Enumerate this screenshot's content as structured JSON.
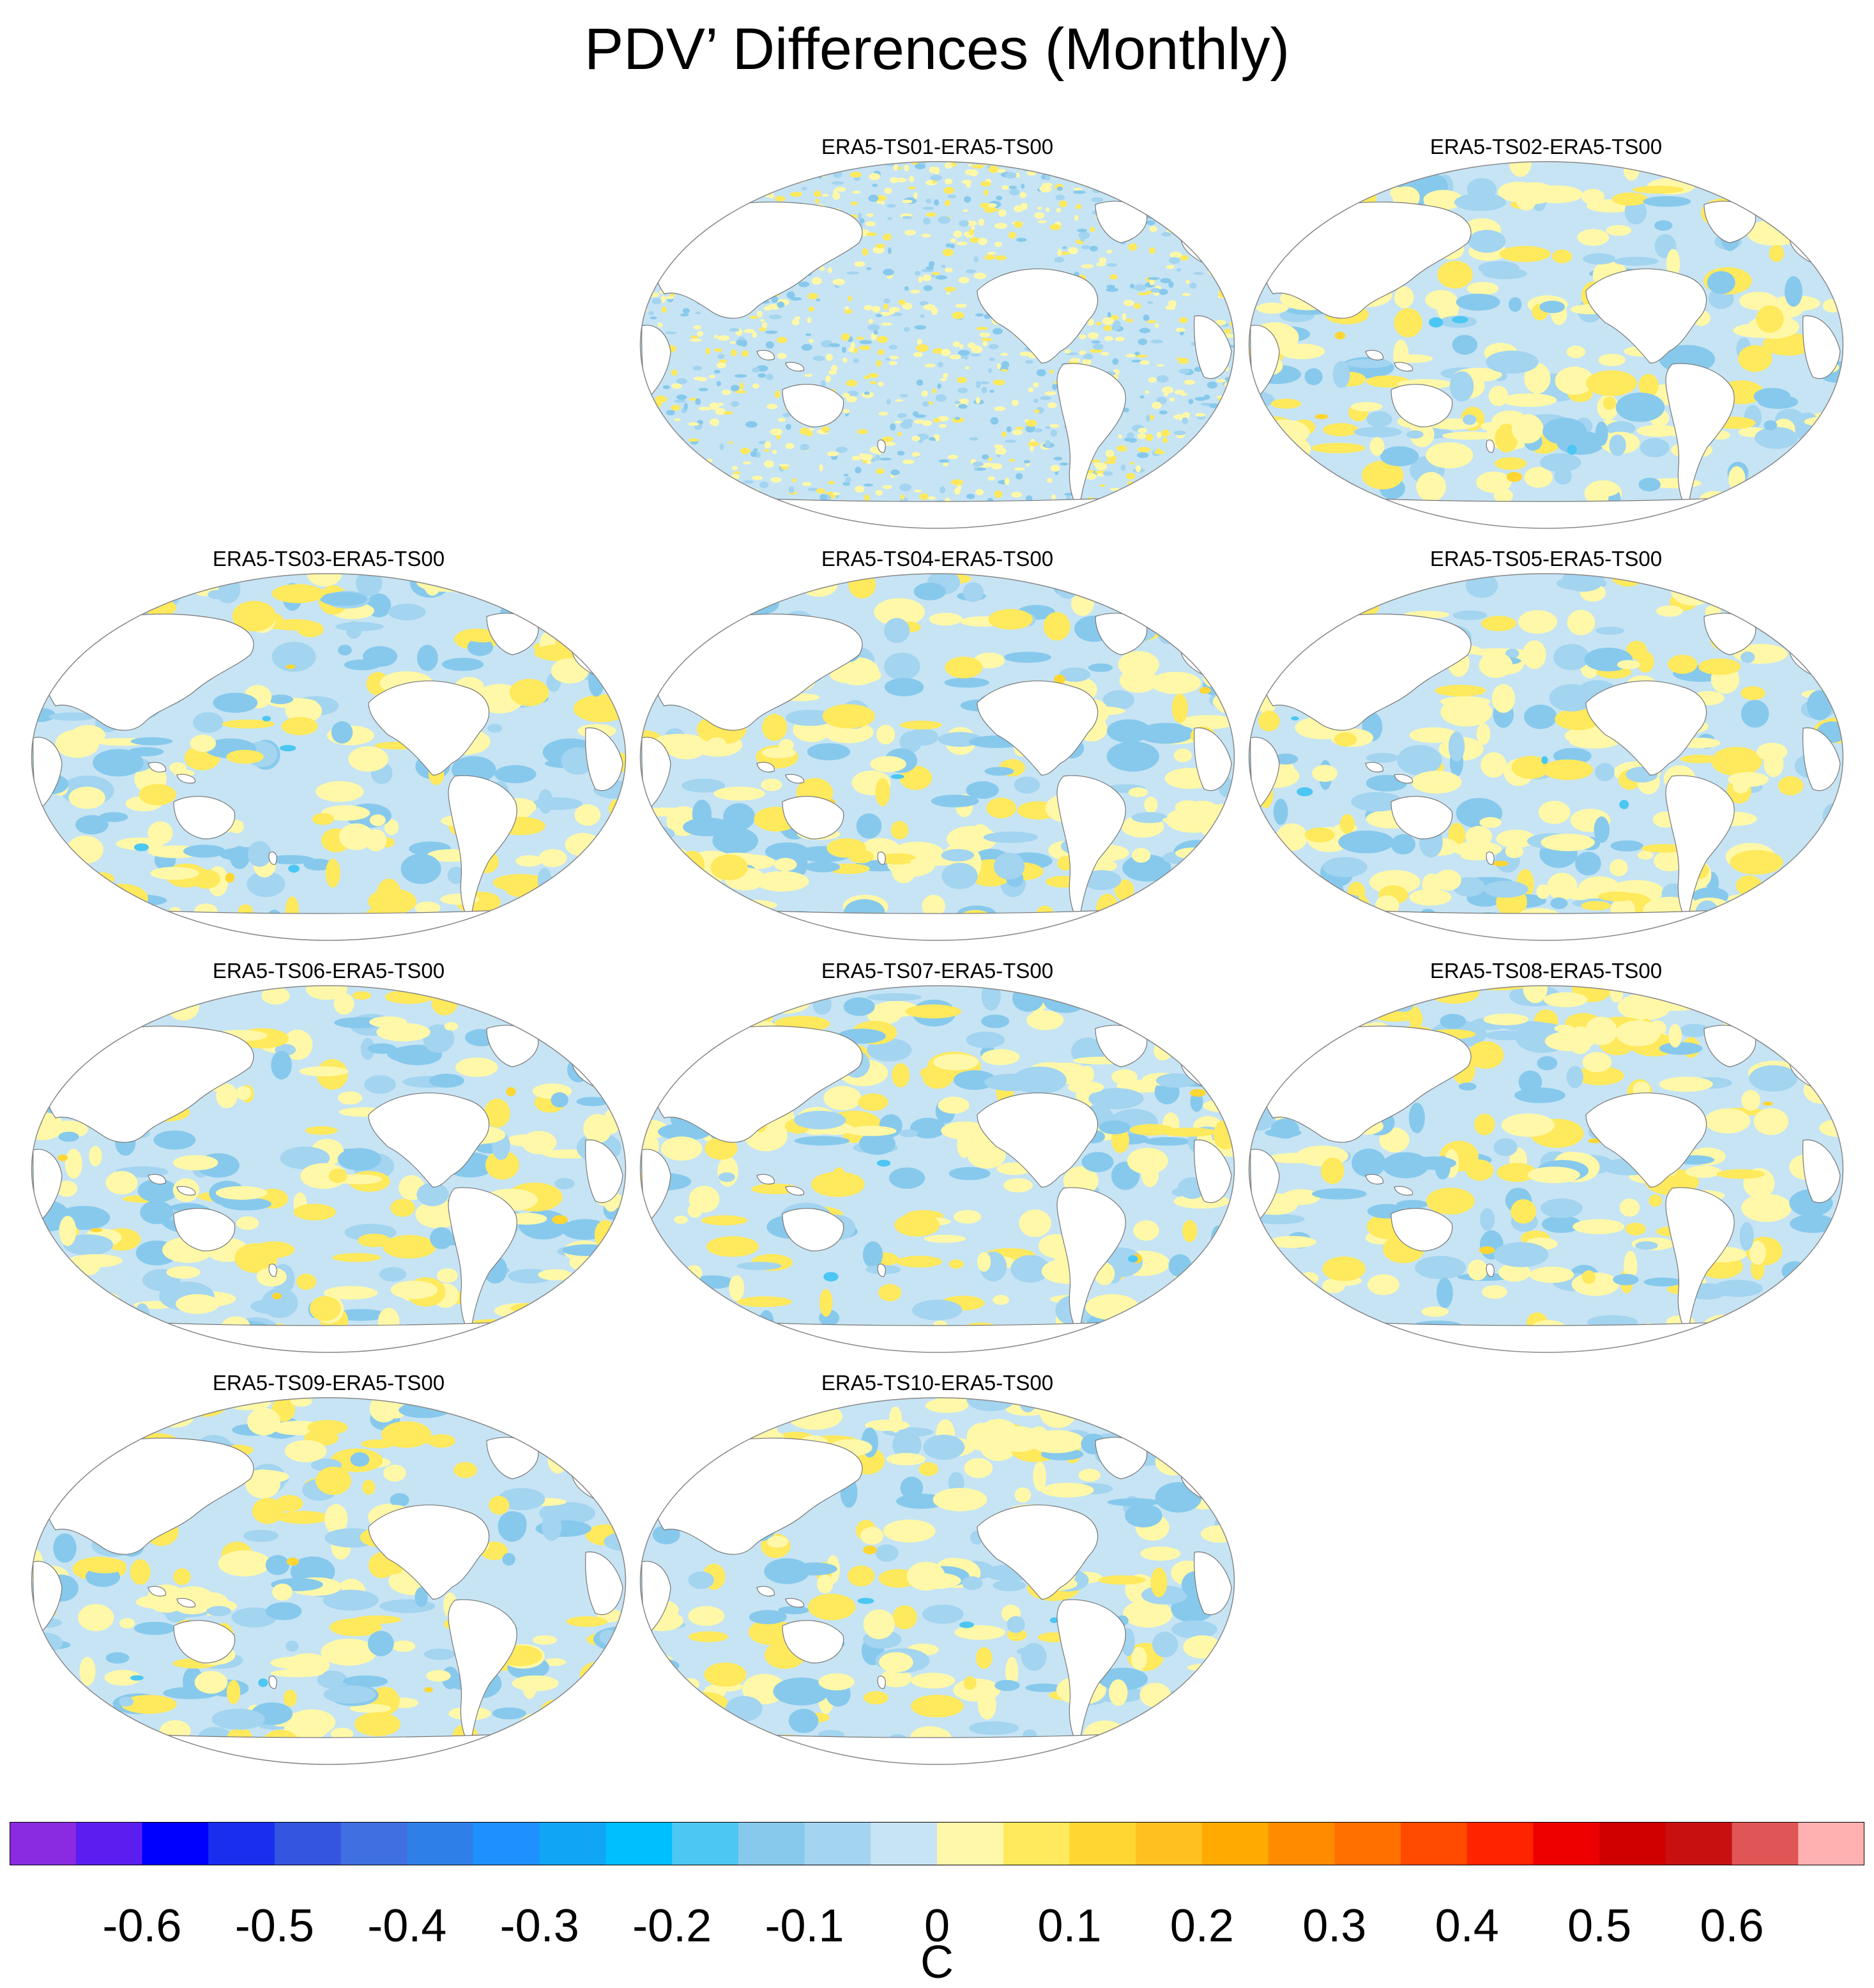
{
  "title": "PDV’ Differences (Monthly)",
  "panels": [
    {
      "label": "ERA5-TS01-ERA5-TS00",
      "seed": 11,
      "pattern": "fine"
    },
    {
      "label": "ERA5-TS02-ERA5-TS00",
      "seed": 23,
      "pattern": "coarse"
    },
    {
      "label": "ERA5-TS03-ERA5-TS00",
      "seed": 37,
      "pattern": "coarse"
    },
    {
      "label": "ERA5-TS04-ERA5-TS00",
      "seed": 41,
      "pattern": "coarse"
    },
    {
      "label": "ERA5-TS05-ERA5-TS00",
      "seed": 53,
      "pattern": "coarse"
    },
    {
      "label": "ERA5-TS06-ERA5-TS00",
      "seed": 67,
      "pattern": "coarse"
    },
    {
      "label": "ERA5-TS07-ERA5-TS00",
      "seed": 71,
      "pattern": "coarse"
    },
    {
      "label": "ERA5-TS08-ERA5-TS00",
      "seed": 83,
      "pattern": "coarse"
    },
    {
      "label": "ERA5-TS09-ERA5-TS00",
      "seed": 97,
      "pattern": "coarse"
    },
    {
      "label": "ERA5-TS10-ERA5-TS00",
      "seed": 101,
      "pattern": "coarse"
    }
  ],
  "colorbar": {
    "units": "C",
    "colors": [
      "#8a2be2",
      "#5a1ff0",
      "#0000ff",
      "#1a2ef0",
      "#3355e0",
      "#3f6fe0",
      "#2f7fe8",
      "#1e90ff",
      "#11a6f5",
      "#00bfff",
      "#4cc6f2",
      "#87c9ec",
      "#a3d4f0",
      "#c6e4f4",
      "#fff8a8",
      "#ffe95c",
      "#ffd632",
      "#ffc020",
      "#ffaa00",
      "#ff8c00",
      "#ff7000",
      "#ff4a00",
      "#ff2400",
      "#ee0000",
      "#d00000",
      "#c81010",
      "#e05555",
      "#ffb0b0"
    ],
    "ticks": [
      "-0.6",
      "-0.5",
      "-0.4",
      "-0.3",
      "-0.2",
      "-0.1",
      "0",
      "0.1",
      "0.2",
      "0.3",
      "0.4",
      "0.5",
      "0.6"
    ]
  }
}
